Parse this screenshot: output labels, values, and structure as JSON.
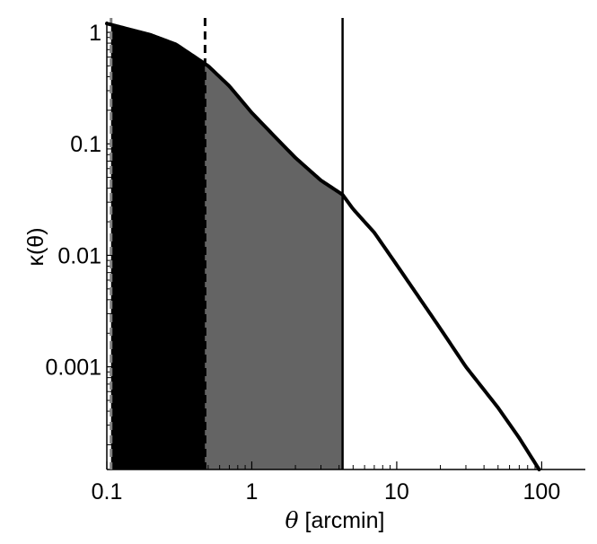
{
  "chart_data": {
    "type": "line",
    "title": "",
    "xlabel": {
      "symbol": "θ",
      "text": " [arcmin]"
    },
    "ylabel": "κ(θ)",
    "xscale": "log",
    "yscale": "log",
    "xlim": [
      0.1,
      200
    ],
    "ylim": [
      0.00012,
      1.25
    ],
    "xticks": [
      0.1,
      1,
      10,
      100
    ],
    "xtick_labels": [
      "0.1",
      "1",
      "10",
      "100"
    ],
    "yticks": [
      1,
      0.1,
      0.01,
      0.001
    ],
    "ytick_labels": [
      "1",
      "0.1",
      "0.01",
      "0.001"
    ],
    "grid": false,
    "legend": "none",
    "series": [
      {
        "x": [
          0.1,
          0.2,
          0.3,
          0.5,
          0.7,
          1,
          1.5,
          2,
          3,
          4.23,
          5,
          7,
          10,
          15,
          20,
          30,
          50,
          70,
          96
        ],
        "y": [
          1.2,
          0.95,
          0.78,
          0.5,
          0.33,
          0.19,
          0.11,
          0.075,
          0.047,
          0.035,
          0.026,
          0.016,
          0.0082,
          0.0038,
          0.0022,
          0.001,
          0.00043,
          0.00023,
          0.00012
        ]
      }
    ],
    "shaded_regions": [
      {
        "x_range": [
          0.107,
          0.476
        ],
        "color": "#000000"
      },
      {
        "x_range": [
          0.476,
          4.23
        ],
        "color": "#646464"
      }
    ],
    "vertical_lines": [
      {
        "x": 0.107,
        "style": "dashed",
        "color": "#808080"
      },
      {
        "x": 0.476,
        "style": "dashed",
        "color": "#000000"
      },
      {
        "x": 4.23,
        "style": "solid",
        "color": "#000000"
      }
    ]
  }
}
